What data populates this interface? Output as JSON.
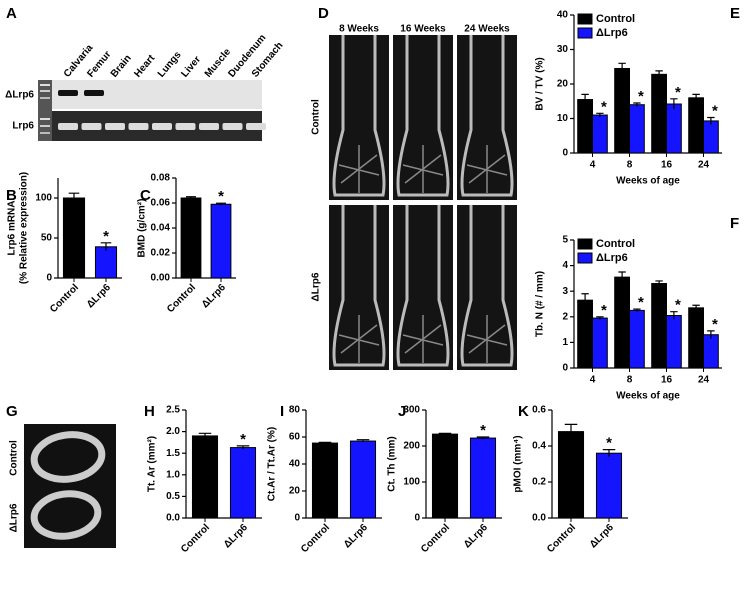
{
  "panel_labels": [
    "A",
    "B",
    "C",
    "D",
    "E",
    "F",
    "G",
    "H",
    "I",
    "J",
    "K"
  ],
  "gel": {
    "lanes": [
      "Calvaria",
      "Femur",
      "Brain",
      "Heart",
      "Lungs",
      "Liver",
      "Muscle",
      "Duodenum",
      "Stomach"
    ],
    "rows": [
      "ΔLrp6",
      "Lrp6"
    ]
  },
  "micro_ct": {
    "columns": [
      "8 Weeks",
      "16 Weeks",
      "24 Weeks"
    ],
    "rows": [
      "Control",
      "ΔLrp6"
    ]
  },
  "cross_section": {
    "rows": [
      "Control",
      "ΔLrp6"
    ]
  },
  "chart_data": [
    {
      "type": "bar",
      "y_label": [
        "Lrp6 mRNA",
        "(% Relative expression)"
      ],
      "categories": [
        "Control",
        "ΔLrp6"
      ],
      "values": [
        100,
        39
      ],
      "errors": [
        6,
        5
      ],
      "colors": [
        "#000000",
        "#1414ff"
      ],
      "ylim": [
        0,
        125
      ],
      "yticks": [
        0,
        50,
        100
      ],
      "annotations": [
        {
          "text": "*",
          "category": 1
        }
      ]
    },
    {
      "type": "bar",
      "y_label": [
        "BMD (g/cm²)"
      ],
      "categories": [
        "Control",
        "ΔLrp6"
      ],
      "values": [
        0.064,
        0.059
      ],
      "errors": [
        0.001,
        0.0008
      ],
      "colors": [
        "#000000",
        "#1414ff"
      ],
      "ylim": [
        0,
        0.08
      ],
      "yticks": [
        {
          "value": 0,
          "label": "0.00"
        },
        0.02,
        0.04,
        0.06,
        0.08
      ],
      "annotations": [
        {
          "text": "*",
          "category": 1
        }
      ]
    },
    {
      "type": "grouped_bar",
      "y_label": [
        "BV / TV (%)"
      ],
      "x_label": "Weeks of age",
      "categories": [
        "4",
        "8",
        "16",
        "24"
      ],
      "series": [
        {
          "name": "Control",
          "color": "#000000",
          "values": [
            15.5,
            24.5,
            22.8,
            16
          ],
          "errors": [
            1.5,
            1.5,
            1,
            1
          ]
        },
        {
          "name": "ΔLrp6",
          "color": "#1414ff",
          "values": [
            11,
            14,
            14.2,
            9.3
          ],
          "errors": [
            0.5,
            0.5,
            1.5,
            1
          ]
        }
      ],
      "ylim": [
        0,
        40
      ],
      "yticks": [
        0,
        10,
        20,
        30,
        40
      ],
      "legend": "top-left",
      "annotations": [
        {
          "text": "*",
          "series": 1,
          "category": 0
        },
        {
          "text": "*",
          "series": 1,
          "category": 1
        },
        {
          "text": "*",
          "series": 1,
          "category": 2
        },
        {
          "text": "*",
          "series": 1,
          "category": 3
        }
      ]
    },
    {
      "type": "grouped_bar",
      "y_label": [
        "Tb. N (# / mm)"
      ],
      "x_label": "Weeks of age",
      "categories": [
        "4",
        "8",
        "16",
        "24"
      ],
      "series": [
        {
          "name": "Control",
          "color": "#000000",
          "values": [
            2.65,
            3.55,
            3.3,
            2.35
          ],
          "errors": [
            0.25,
            0.2,
            0.1,
            0.1
          ]
        },
        {
          "name": "ΔLrp6",
          "color": "#1414ff",
          "values": [
            1.95,
            2.25,
            2.05,
            1.3
          ],
          "errors": [
            0.05,
            0.05,
            0.15,
            0.15
          ]
        }
      ],
      "ylim": [
        0,
        5
      ],
      "yticks": [
        0,
        1,
        2,
        3,
        4,
        5
      ],
      "legend": "top-left",
      "annotations": [
        {
          "text": "*",
          "series": 1,
          "category": 0
        },
        {
          "text": "*",
          "series": 1,
          "category": 1
        },
        {
          "text": "*",
          "series": 1,
          "category": 2
        },
        {
          "text": "*",
          "series": 1,
          "category": 3
        }
      ]
    },
    {
      "type": "bar",
      "y_label": [
        "Tt. Ar (mm²)"
      ],
      "categories": [
        "Control",
        "ΔLrp6"
      ],
      "values": [
        1.9,
        1.63
      ],
      "errors": [
        0.06,
        0.04
      ],
      "colors": [
        "#000000",
        "#1414ff"
      ],
      "ylim": [
        0,
        2.5
      ],
      "yticks": [
        {
          "value": 0,
          "label": "0.0"
        },
        0.5,
        {
          "value": 1,
          "label": "1.0"
        },
        1.5,
        {
          "value": 2,
          "label": "2.0"
        },
        2.5
      ],
      "annotations": [
        {
          "text": "*",
          "category": 1
        }
      ]
    },
    {
      "type": "bar",
      "y_label": [
        "Ct.Ar / Tt.Ar (%)"
      ],
      "categories": [
        "Control",
        "ΔLrp6"
      ],
      "values": [
        55.5,
        57
      ],
      "errors": [
        0.5,
        1
      ],
      "colors": [
        "#000000",
        "#1414ff"
      ],
      "ylim": [
        0,
        80
      ],
      "yticks": [
        0,
        20,
        40,
        60,
        80
      ]
    },
    {
      "type": "bar",
      "y_label": [
        "Ct. Th (mm)"
      ],
      "categories": [
        "Control",
        "ΔLrp6"
      ],
      "values": [
        233,
        222
      ],
      "errors": [
        2,
        3
      ],
      "colors": [
        "#000000",
        "#1414ff"
      ],
      "ylim": [
        0,
        300
      ],
      "yticks": [
        0,
        100,
        200,
        300
      ],
      "annotations": [
        {
          "text": "*",
          "category": 1
        }
      ]
    },
    {
      "type": "bar",
      "y_label": [
        "pMOI (mm⁴)"
      ],
      "categories": [
        "Control",
        "ΔLrp6"
      ],
      "values": [
        0.48,
        0.36
      ],
      "errors": [
        0.04,
        0.02
      ],
      "colors": [
        "#000000",
        "#1414ff"
      ],
      "ylim": [
        0,
        0.6
      ],
      "yticks": [
        {
          "value": 0,
          "label": "0.0"
        },
        0.2,
        0.4,
        0.6
      ],
      "annotations": [
        {
          "text": "*",
          "category": 1
        }
      ]
    }
  ]
}
